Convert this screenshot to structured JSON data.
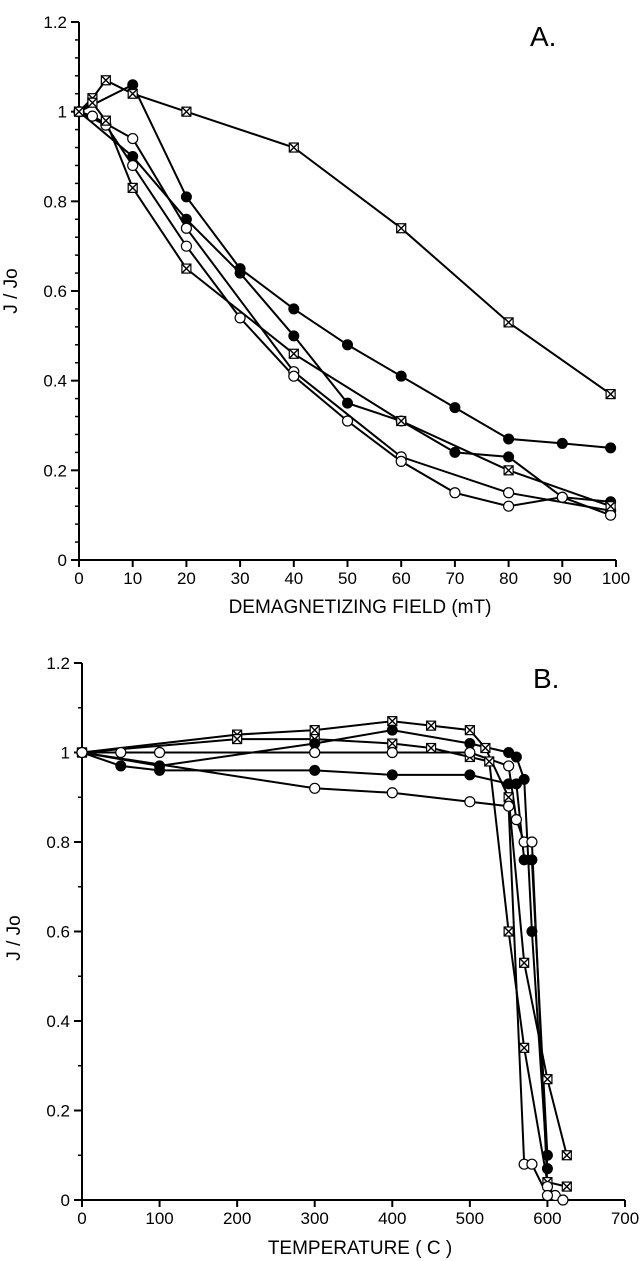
{
  "chart_data": [
    {
      "type": "line",
      "panel_label": "A.",
      "xlabel": "DEMAGNETIZING FIELD   (mT)",
      "ylabel": "J / Jo",
      "xlim": [
        0,
        100
      ],
      "ylim": [
        0,
        1.2
      ],
      "x_ticks": [
        "0",
        "10",
        "20",
        "30",
        "40",
        "50",
        "60",
        "70",
        "80",
        "90",
        "100"
      ],
      "y_ticks": [
        "0",
        "0.2",
        "0.4",
        "0.6",
        "0.8",
        "1",
        "1.2"
      ],
      "grid": false,
      "series": [
        {
          "marker": "square-x",
          "points": [
            [
              0,
              1.0
            ],
            [
              2.5,
              1.03
            ],
            [
              5,
              1.07
            ],
            [
              10,
              1.04
            ],
            [
              20,
              1.0
            ],
            [
              40,
              0.92
            ],
            [
              60,
              0.74
            ],
            [
              80,
              0.53
            ],
            [
              99,
              0.37
            ]
          ]
        },
        {
          "marker": "filled-circle",
          "points": [
            [
              0,
              1.0
            ],
            [
              10,
              1.06
            ],
            [
              20,
              0.81
            ],
            [
              30,
              0.65
            ],
            [
              40,
              0.56
            ],
            [
              50,
              0.48
            ],
            [
              60,
              0.41
            ],
            [
              70,
              0.34
            ],
            [
              80,
              0.27
            ],
            [
              90,
              0.26
            ],
            [
              99,
              0.25
            ]
          ]
        },
        {
          "marker": "filled-circle",
          "points": [
            [
              0,
              1.0
            ],
            [
              10,
              0.9
            ],
            [
              20,
              0.76
            ],
            [
              30,
              0.64
            ],
            [
              40,
              0.5
            ],
            [
              50,
              0.35
            ],
            [
              60,
              0.31
            ],
            [
              70,
              0.24
            ],
            [
              80,
              0.23
            ],
            [
              90,
              0.14
            ],
            [
              99,
              0.13
            ]
          ]
        },
        {
          "marker": "open-circle",
          "points": [
            [
              0,
              1.0
            ],
            [
              2.5,
              0.99
            ],
            [
              10,
              0.94
            ],
            [
              20,
              0.74
            ],
            [
              40,
              0.42
            ],
            [
              60,
              0.23
            ],
            [
              80,
              0.15
            ],
            [
              99,
              0.11
            ]
          ]
        },
        {
          "marker": "open-circle",
          "points": [
            [
              0,
              1.0
            ],
            [
              5,
              0.97
            ],
            [
              10,
              0.88
            ],
            [
              20,
              0.7
            ],
            [
              30,
              0.54
            ],
            [
              40,
              0.41
            ],
            [
              50,
              0.31
            ],
            [
              60,
              0.22
            ],
            [
              70,
              0.15
            ],
            [
              80,
              0.12
            ],
            [
              90,
              0.14
            ],
            [
              99,
              0.1
            ]
          ]
        },
        {
          "marker": "square-x",
          "points": [
            [
              0,
              1.0
            ],
            [
              2.5,
              1.02
            ],
            [
              5,
              0.98
            ],
            [
              10,
              0.83
            ],
            [
              20,
              0.65
            ],
            [
              40,
              0.46
            ],
            [
              60,
              0.31
            ],
            [
              80,
              0.2
            ],
            [
              99,
              0.12
            ]
          ]
        }
      ]
    },
    {
      "type": "line",
      "panel_label": "B.",
      "xlabel": "TEMPERATURE  ( C )",
      "ylabel": "J / Jo",
      "xlim": [
        0,
        700
      ],
      "ylim": [
        0,
        1.2
      ],
      "x_ticks": [
        "0",
        "100",
        "200",
        "300",
        "400",
        "500",
        "600",
        "700"
      ],
      "y_ticks": [
        "0",
        "0.2",
        "0.4",
        "0.6",
        "0.8",
        "1",
        "1.2"
      ],
      "grid": false,
      "series": [
        {
          "marker": "square-x",
          "points": [
            [
              0,
              1.0
            ],
            [
              200,
              1.04
            ],
            [
              300,
              1.05
            ],
            [
              400,
              1.07
            ],
            [
              450,
              1.06
            ],
            [
              500,
              1.05
            ],
            [
              520,
              1.01
            ],
            [
              550,
              0.9
            ],
            [
              570,
              0.53
            ],
            [
              600,
              0.27
            ],
            [
              625,
              0.1
            ]
          ]
        },
        {
          "marker": "square-x",
          "points": [
            [
              0,
              1.0
            ],
            [
              200,
              1.03
            ],
            [
              300,
              1.03
            ],
            [
              400,
              1.02
            ],
            [
              450,
              1.01
            ],
            [
              500,
              0.99
            ],
            [
              525,
              0.98
            ],
            [
              550,
              0.6
            ],
            [
              570,
              0.34
            ],
            [
              600,
              0.04
            ],
            [
              625,
              0.03
            ]
          ]
        },
        {
          "marker": "filled-circle",
          "points": [
            [
              0,
              1.0
            ],
            [
              100,
              0.97
            ],
            [
              300,
              1.02
            ],
            [
              400,
              1.05
            ],
            [
              500,
              1.02
            ],
            [
              550,
              1.0
            ],
            [
              560,
              0.99
            ],
            [
              570,
              0.94
            ],
            [
              580,
              0.6
            ],
            [
              600,
              0.07
            ]
          ]
        },
        {
          "marker": "filled-circle",
          "points": [
            [
              0,
              1.0
            ],
            [
              50,
              0.97
            ],
            [
              100,
              0.96
            ],
            [
              300,
              0.96
            ],
            [
              400,
              0.95
            ],
            [
              500,
              0.95
            ],
            [
              550,
              0.93
            ],
            [
              560,
              0.93
            ],
            [
              570,
              0.76
            ],
            [
              580,
              0.76
            ],
            [
              600,
              0.1
            ]
          ]
        },
        {
          "marker": "open-circle",
          "points": [
            [
              0,
              1.0
            ],
            [
              50,
              1.0
            ],
            [
              100,
              1.0
            ],
            [
              300,
              1.0
            ],
            [
              400,
              1.0
            ],
            [
              500,
              1.0
            ],
            [
              550,
              0.97
            ],
            [
              560,
              0.85
            ],
            [
              570,
              0.8
            ],
            [
              580,
              0.8
            ],
            [
              600,
              0.03
            ],
            [
              610,
              0.01
            ],
            [
              620,
              0.0
            ]
          ]
        },
        {
          "marker": "open-circle",
          "points": [
            [
              0,
              1.0
            ],
            [
              300,
              0.92
            ],
            [
              400,
              0.91
            ],
            [
              500,
              0.89
            ],
            [
              550,
              0.88
            ],
            [
              570,
              0.08
            ],
            [
              580,
              0.08
            ],
            [
              600,
              0.01
            ]
          ]
        }
      ]
    }
  ]
}
